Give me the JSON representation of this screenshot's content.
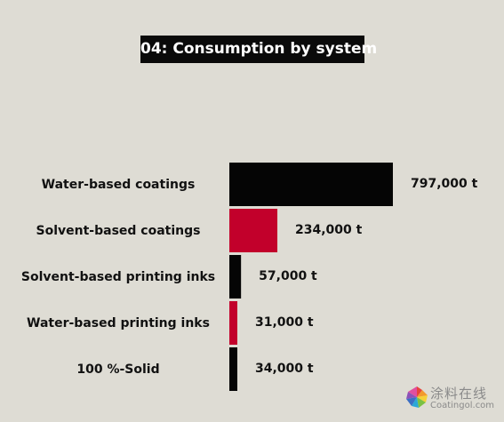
{
  "chart_data": {
    "type": "bar",
    "orientation": "horizontal",
    "title": "04: Consumption by system",
    "categories": [
      "Water-based coatings",
      "Solvent-based coatings",
      "Solvent-based printing inks",
      "Water-based printing inks",
      "100 %-Solid"
    ],
    "values": [
      797000,
      234000,
      57000,
      31000,
      34000
    ],
    "value_labels": [
      "797,000 t",
      "234,000 t",
      "57,000 t",
      "31,000 t",
      "34,000 t"
    ],
    "unit": "t",
    "bar_colors": [
      "#050505",
      "#c2002b",
      "#050505",
      "#c2002b",
      "#050505"
    ],
    "xlim": [
      0,
      797000
    ],
    "grid": false,
    "legend": "none"
  },
  "colors": {
    "background": "#dedcd4",
    "accent_red": "#c2002b",
    "black": "#050505"
  },
  "watermark": {
    "cn_text": "涂料在线",
    "url": "Coatingol.com",
    "logo": "pinwheel-logo-icon"
  }
}
